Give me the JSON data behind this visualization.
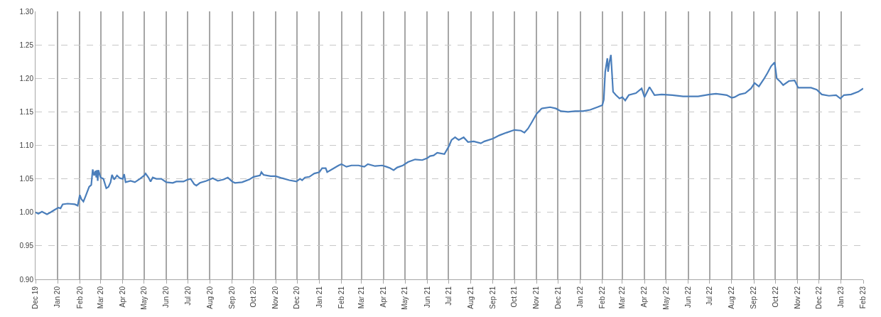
{
  "chart_data": {
    "type": "line",
    "x": [
      "2019-12-01",
      "2019-12-05",
      "2019-12-10",
      "2019-12-17",
      "2019-12-22",
      "2019-12-28",
      "2020-01-02",
      "2020-01-05",
      "2020-01-08",
      "2020-01-15",
      "2020-01-25",
      "2020-01-29",
      "2020-02-01",
      "2020-02-03",
      "2020-02-06",
      "2020-02-09",
      "2020-02-14",
      "2020-02-17",
      "2020-02-19",
      "2020-02-21",
      "2020-02-23",
      "2020-02-24",
      "2020-02-25",
      "2020-02-26",
      "2020-02-27",
      "2020-03-01",
      "2020-03-05",
      "2020-03-09",
      "2020-03-12",
      "2020-03-15",
      "2020-03-17",
      "2020-03-20",
      "2020-03-24",
      "2020-03-28",
      "2020-04-01",
      "2020-04-03",
      "2020-04-05",
      "2020-04-12",
      "2020-04-18",
      "2020-04-25",
      "2020-05-01",
      "2020-05-03",
      "2020-05-07",
      "2020-05-10",
      "2020-05-13",
      "2020-05-18",
      "2020-05-25",
      "2020-06-01",
      "2020-06-10",
      "2020-06-15",
      "2020-06-25",
      "2020-07-01",
      "2020-07-05",
      "2020-07-10",
      "2020-07-13",
      "2020-07-18",
      "2020-07-27",
      "2020-08-05",
      "2020-08-12",
      "2020-08-20",
      "2020-08-26",
      "2020-09-01",
      "2020-09-05",
      "2020-09-15",
      "2020-09-25",
      "2020-10-01",
      "2020-10-10",
      "2020-10-12",
      "2020-10-15",
      "2020-10-25",
      "2020-11-01",
      "2020-11-10",
      "2020-11-20",
      "2020-11-30",
      "2020-12-05",
      "2020-12-08",
      "2020-12-12",
      "2020-12-18",
      "2020-12-25",
      "2021-01-01",
      "2021-01-05",
      "2021-01-10",
      "2021-01-12",
      "2021-01-20",
      "2021-01-28",
      "2021-02-01",
      "2021-02-08",
      "2021-02-15",
      "2021-02-25",
      "2021-03-05",
      "2021-03-10",
      "2021-03-20",
      "2021-03-30",
      "2021-04-05",
      "2021-04-10",
      "2021-04-15",
      "2021-04-20",
      "2021-04-28",
      "2021-05-05",
      "2021-05-15",
      "2021-05-25",
      "2021-06-01",
      "2021-06-05",
      "2021-06-10",
      "2021-06-15",
      "2021-06-25",
      "2021-07-01",
      "2021-07-05",
      "2021-07-10",
      "2021-07-15",
      "2021-07-22",
      "2021-07-28",
      "2021-08-05",
      "2021-08-15",
      "2021-08-20",
      "2021-09-01",
      "2021-09-10",
      "2021-09-20",
      "2021-10-01",
      "2021-10-10",
      "2021-10-15",
      "2021-10-20",
      "2021-10-25",
      "2021-11-01",
      "2021-11-08",
      "2021-11-20",
      "2021-11-28",
      "2021-12-05",
      "2021-12-15",
      "2021-12-25",
      "2022-01-05",
      "2022-01-15",
      "2022-01-25",
      "2022-02-01",
      "2022-02-03",
      "2022-02-05",
      "2022-02-08",
      "2022-02-09",
      "2022-02-11",
      "2022-02-13",
      "2022-02-16",
      "2022-02-20",
      "2022-02-25",
      "2022-03-01",
      "2022-03-05",
      "2022-03-10",
      "2022-03-20",
      "2022-03-28",
      "2022-04-01",
      "2022-04-08",
      "2022-04-15",
      "2022-04-25",
      "2022-05-10",
      "2022-05-25",
      "2022-06-15",
      "2022-07-01",
      "2022-07-10",
      "2022-07-25",
      "2022-08-01",
      "2022-08-05",
      "2022-08-12",
      "2022-08-20",
      "2022-08-28",
      "2022-09-02",
      "2022-09-08",
      "2022-09-15",
      "2022-09-20",
      "2022-09-25",
      "2022-09-30",
      "2022-10-03",
      "2022-10-08",
      "2022-10-12",
      "2022-10-20",
      "2022-10-28",
      "2022-11-02",
      "2022-11-10",
      "2022-11-20",
      "2022-11-28",
      "2022-12-05",
      "2022-12-15",
      "2022-12-25",
      "2022-12-31",
      "2023-01-05",
      "2023-01-15",
      "2023-01-25",
      "2023-02-01"
    ],
    "series": [
      {
        "color": "#4a7ebb",
        "values": [
          1.0,
          0.998,
          1.001,
          0.997,
          1.0,
          1.004,
          1.007,
          1.006,
          1.012,
          1.013,
          1.012,
          1.01,
          1.026,
          1.02,
          1.016,
          1.024,
          1.038,
          1.041,
          1.064,
          1.055,
          1.062,
          1.052,
          1.063,
          1.047,
          1.063,
          1.052,
          1.05,
          1.036,
          1.038,
          1.045,
          1.056,
          1.049,
          1.055,
          1.051,
          1.05,
          1.057,
          1.045,
          1.047,
          1.045,
          1.05,
          1.055,
          1.058,
          1.052,
          1.046,
          1.052,
          1.05,
          1.05,
          1.045,
          1.044,
          1.046,
          1.046,
          1.049,
          1.05,
          1.042,
          1.04,
          1.044,
          1.047,
          1.051,
          1.047,
          1.049,
          1.052,
          1.046,
          1.044,
          1.045,
          1.049,
          1.053,
          1.055,
          1.06,
          1.056,
          1.054,
          1.054,
          1.051,
          1.048,
          1.046,
          1.05,
          1.048,
          1.052,
          1.053,
          1.058,
          1.06,
          1.066,
          1.066,
          1.06,
          1.065,
          1.07,
          1.072,
          1.068,
          1.07,
          1.07,
          1.068,
          1.072,
          1.069,
          1.07,
          1.068,
          1.066,
          1.063,
          1.067,
          1.07,
          1.075,
          1.079,
          1.078,
          1.081,
          1.084,
          1.085,
          1.089,
          1.087,
          1.098,
          1.108,
          1.112,
          1.108,
          1.112,
          1.105,
          1.106,
          1.103,
          1.106,
          1.11,
          1.115,
          1.119,
          1.123,
          1.122,
          1.119,
          1.125,
          1.134,
          1.147,
          1.155,
          1.157,
          1.155,
          1.151,
          1.15,
          1.151,
          1.151,
          1.153,
          1.157,
          1.16,
          1.168,
          1.21,
          1.23,
          1.21,
          1.225,
          1.235,
          1.18,
          1.175,
          1.17,
          1.172,
          1.167,
          1.175,
          1.178,
          1.185,
          1.172,
          1.187,
          1.175,
          1.176,
          1.175,
          1.173,
          1.173,
          1.176,
          1.177,
          1.175,
          1.171,
          1.172,
          1.176,
          1.178,
          1.185,
          1.193,
          1.188,
          1.199,
          1.208,
          1.218,
          1.224,
          1.2,
          1.195,
          1.19,
          1.196,
          1.197,
          1.186,
          1.186,
          1.186,
          1.183,
          1.176,
          1.174,
          1.175,
          1.17,
          1.175,
          1.176,
          1.18,
          1.185
        ]
      }
    ],
    "xlim": [
      "2019-12-01",
      "2023-02-01"
    ],
    "xticks": [
      {
        "value": "2019-12-01",
        "label": "Dec 19"
      },
      {
        "value": "2020-01-01",
        "label": "Jan 20"
      },
      {
        "value": "2020-02-01",
        "label": "Feb 20"
      },
      {
        "value": "2020-03-01",
        "label": "Mar 20"
      },
      {
        "value": "2020-04-01",
        "label": "Apr 20"
      },
      {
        "value": "2020-05-01",
        "label": "May 20"
      },
      {
        "value": "2020-06-01",
        "label": "Jun 20"
      },
      {
        "value": "2020-07-01",
        "label": "Jul 20"
      },
      {
        "value": "2020-08-01",
        "label": "Aug 20"
      },
      {
        "value": "2020-09-01",
        "label": "Sep 20"
      },
      {
        "value": "2020-10-01",
        "label": "Oct 20"
      },
      {
        "value": "2020-11-01",
        "label": "Nov 20"
      },
      {
        "value": "2020-12-01",
        "label": "Dec 20"
      },
      {
        "value": "2021-01-01",
        "label": "Jan 21"
      },
      {
        "value": "2021-02-01",
        "label": "Feb 21"
      },
      {
        "value": "2021-03-01",
        "label": "Mar 21"
      },
      {
        "value": "2021-04-01",
        "label": "Apr 21"
      },
      {
        "value": "2021-05-01",
        "label": "May 21"
      },
      {
        "value": "2021-06-01",
        "label": "Jun 21"
      },
      {
        "value": "2021-07-01",
        "label": "Jul 21"
      },
      {
        "value": "2021-08-01",
        "label": "Aug 21"
      },
      {
        "value": "2021-09-01",
        "label": "Sep 21"
      },
      {
        "value": "2021-10-01",
        "label": "Oct 21"
      },
      {
        "value": "2021-11-01",
        "label": "Nov 21"
      },
      {
        "value": "2021-12-01",
        "label": "Dec 21"
      },
      {
        "value": "2022-01-01",
        "label": "Jan 22"
      },
      {
        "value": "2022-02-01",
        "label": "Feb 22"
      },
      {
        "value": "2022-03-01",
        "label": "Mar 22"
      },
      {
        "value": "2022-04-01",
        "label": "Apr 22"
      },
      {
        "value": "2022-05-01",
        "label": "May 22"
      },
      {
        "value": "2022-06-01",
        "label": "Jun 22"
      },
      {
        "value": "2022-07-01",
        "label": "Jul 22"
      },
      {
        "value": "2022-08-01",
        "label": "Aug 22"
      },
      {
        "value": "2022-09-01",
        "label": "Sep 22"
      },
      {
        "value": "2022-10-01",
        "label": "Oct 22"
      },
      {
        "value": "2022-11-01",
        "label": "Nov 22"
      },
      {
        "value": "2022-12-01",
        "label": "Dec 22"
      },
      {
        "value": "2023-01-01",
        "label": "Jan 23"
      },
      {
        "value": "2023-02-01",
        "label": "Feb 23"
      }
    ],
    "ylim": [
      0.9,
      1.3
    ],
    "yticks": [
      {
        "value": 0.9,
        "label": "0.90"
      },
      {
        "value": 0.95,
        "label": "0.95"
      },
      {
        "value": 1.0,
        "label": "1.00"
      },
      {
        "value": 1.05,
        "label": "1.05"
      },
      {
        "value": 1.1,
        "label": "1.10"
      },
      {
        "value": 1.15,
        "label": "1.15"
      },
      {
        "value": 1.2,
        "label": "1.20"
      },
      {
        "value": 1.25,
        "label": "1.25"
      },
      {
        "value": 1.3,
        "label": "1.30"
      }
    ],
    "grid": true,
    "marker": "none",
    "line_style": "solid"
  }
}
